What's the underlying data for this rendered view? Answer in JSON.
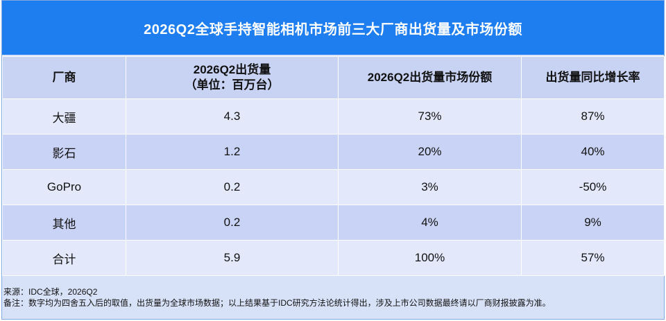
{
  "title": "2026Q2全球手持智能相机市场前三大厂商出货量及市场份额",
  "table": {
    "headers": [
      {
        "line1": "厂商",
        "line2": ""
      },
      {
        "line1": "2026Q2出货量",
        "line2": "（单位：百万台）"
      },
      {
        "line1": "2026Q2出货量市场份额",
        "line2": ""
      },
      {
        "line1": "出货量同比增长率",
        "line2": ""
      }
    ],
    "rows": [
      {
        "vendor": "大疆",
        "shipments": "4.3",
        "share": "73%",
        "growth": "87%"
      },
      {
        "vendor": "影石",
        "shipments": "1.2",
        "share": "20%",
        "growth": "40%"
      },
      {
        "vendor": "GoPro",
        "shipments": "0.2",
        "share": "3%",
        "growth": "-50%"
      },
      {
        "vendor": "其他",
        "shipments": "0.2",
        "share": "4%",
        "growth": "9%"
      },
      {
        "vendor": "合计",
        "shipments": "5.9",
        "share": "100%",
        "growth": "57%"
      }
    ]
  },
  "notes": {
    "source": "来源：IDC全球，2026Q2",
    "remark": "备注：数字均为四舍五入后的取值，出货量为全球市场数据；以上结果基于IDC研究方法论统计得出，涉及上市公司数据最终请以厂商财报披露为准。"
  },
  "colors": {
    "title_bg": "#1e7ef0",
    "header_bg": "#c8d2f3",
    "row_light": "#e3e8fb",
    "row_dark": "#c9d3f5"
  }
}
